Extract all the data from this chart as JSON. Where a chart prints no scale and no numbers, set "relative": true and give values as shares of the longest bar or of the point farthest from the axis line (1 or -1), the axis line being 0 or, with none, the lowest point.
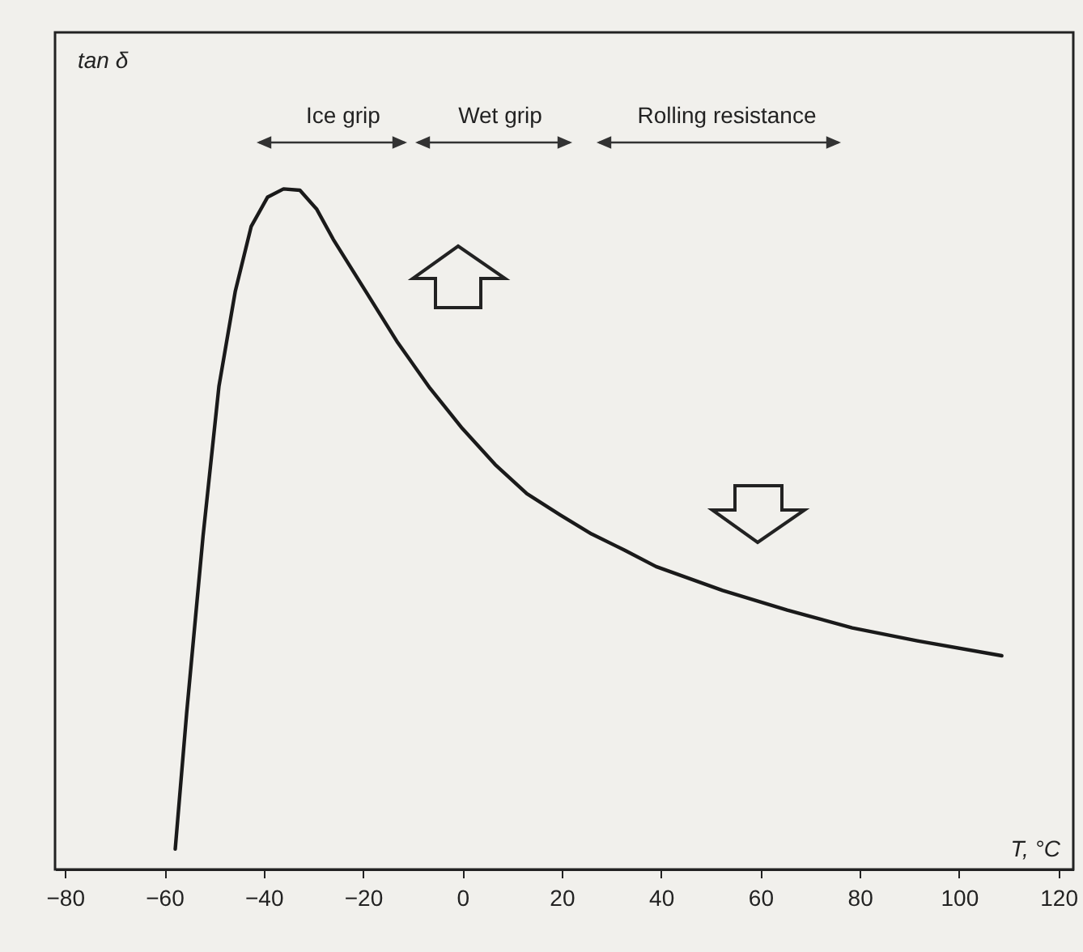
{
  "chart_data": {
    "type": "line",
    "xlabel": "T, °C",
    "relative": true,
    "annotations": [
      "tan δ",
      "Ice grip",
      "Wet grip",
      "Rolling resistance"
    ],
    "x": [
      -57.8,
      -55.5,
      -52.2,
      -49,
      -45.7,
      -42.5,
      -39.2,
      -36,
      -32.7,
      -29.3,
      -26,
      -19.5,
      -13,
      -6.5,
      0,
      6.6,
      13,
      19.7,
      26,
      32.7,
      39,
      52.4,
      65.4,
      78.5,
      91.6,
      108.6
    ],
    "series": [
      {
        "color": "#1a1a1a",
        "values": [
          0.03,
          0.23,
          0.49,
          0.71,
          0.85,
          0.945,
          0.988,
          1,
          0.998,
          0.97,
          0.926,
          0.85,
          0.774,
          0.707,
          0.648,
          0.595,
          0.552,
          0.521,
          0.493,
          0.469,
          0.445,
          0.41,
          0.381,
          0.355,
          0.336,
          0.314
        ]
      }
    ],
    "xlim": [
      -82,
      123
    ],
    "xticks": [
      -80,
      -60,
      -40,
      -20,
      0,
      20,
      40,
      60,
      80,
      100,
      120
    ]
  }
}
